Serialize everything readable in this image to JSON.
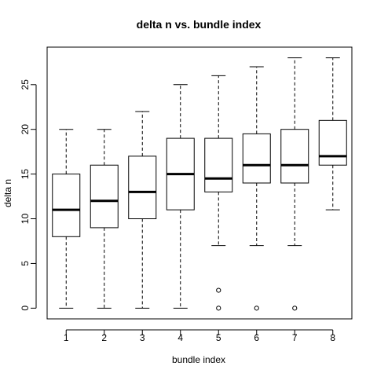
{
  "chart_data": {
    "type": "boxplot",
    "title": "delta n vs. bundle index",
    "xlabel": "bundle index",
    "ylabel": "delta n",
    "categories": [
      "1",
      "2",
      "3",
      "4",
      "5",
      "6",
      "7",
      "8"
    ],
    "yticks": [
      "0",
      "5",
      "10",
      "15",
      "20",
      "25"
    ],
    "ylim": [
      -1.2,
      29.2
    ],
    "xlim": [
      0.5,
      8.5
    ],
    "grid": false,
    "legend": "none",
    "boxes": [
      {
        "category": "1",
        "whisker_low": 0,
        "q1": 8,
        "median": 11,
        "q3": 15,
        "whisker_high": 20,
        "outliers": []
      },
      {
        "category": "2",
        "whisker_low": 0,
        "q1": 9,
        "median": 12,
        "q3": 16,
        "whisker_high": 20,
        "outliers": []
      },
      {
        "category": "3",
        "whisker_low": 0,
        "q1": 10,
        "median": 13,
        "q3": 17,
        "whisker_high": 22,
        "outliers": []
      },
      {
        "category": "4",
        "whisker_low": 0,
        "q1": 11,
        "median": 15,
        "q3": 19,
        "whisker_high": 25,
        "outliers": []
      },
      {
        "category": "5",
        "whisker_low": 7,
        "q1": 13,
        "median": 14.5,
        "q3": 19,
        "whisker_high": 26,
        "outliers": [
          2,
          0
        ]
      },
      {
        "category": "6",
        "whisker_low": 7,
        "q1": 14,
        "median": 16,
        "q3": 19.5,
        "whisker_high": 27,
        "outliers": [
          0
        ]
      },
      {
        "category": "7",
        "whisker_low": 7,
        "q1": 14,
        "median": 16,
        "q3": 20,
        "whisker_high": 28,
        "outliers": [
          0
        ]
      },
      {
        "category": "8",
        "whisker_low": 11,
        "q1": 16,
        "median": 17,
        "q3": 21,
        "whisker_high": 28,
        "outliers": []
      }
    ],
    "colors": {
      "box_fill": "#ffffff",
      "stroke": "#000000",
      "background": "#ffffff"
    }
  }
}
